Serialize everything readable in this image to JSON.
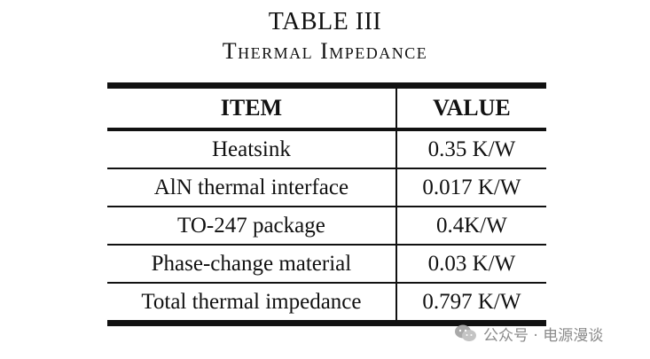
{
  "caption": {
    "number": "TABLE III",
    "title": "Thermal Impedance"
  },
  "table": {
    "headers": [
      "ITEM",
      "VALUE"
    ],
    "rows": [
      [
        "Heatsink",
        "0.35 K/W"
      ],
      [
        "AlN thermal interface",
        "0.017 K/W"
      ],
      [
        "TO-247 package",
        "0.4K/W"
      ],
      [
        "Phase-change material",
        "0.03 K/W"
      ],
      [
        "Total thermal impedance",
        "0.797 K/W"
      ]
    ]
  },
  "watermark": {
    "icon": "wechat-icon",
    "text": "公众号 · 电源漫谈"
  }
}
